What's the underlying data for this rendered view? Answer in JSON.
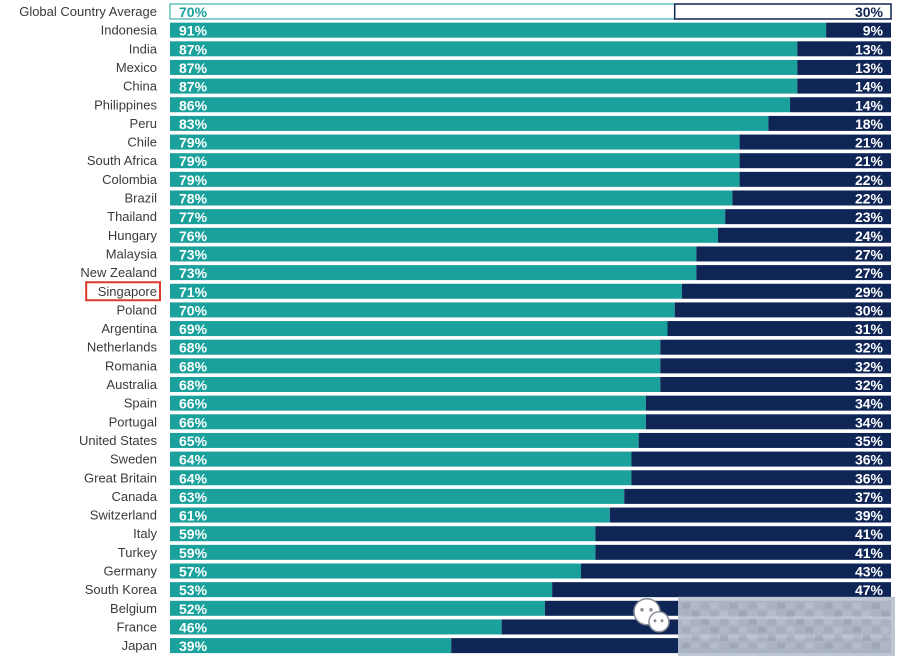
{
  "chart_data": {
    "type": "bar",
    "stacked": true,
    "orientation": "horizontal",
    "highlighted_category": "Singapore",
    "categories": [
      "Global Country Average",
      "Indonesia",
      "India",
      "Mexico",
      "China",
      "Philippines",
      "Peru",
      "Chile",
      "South Africa",
      "Colombia",
      "Brazil",
      "Thailand",
      "Hungary",
      "Malaysia",
      "New Zealand",
      "Singapore",
      "Poland",
      "Argentina",
      "Netherlands",
      "Romania",
      "Australia",
      "Spain",
      "Portugal",
      "United States",
      "Sweden",
      "Great Britain",
      "Canada",
      "Switzerland",
      "Italy",
      "Turkey",
      "Germany",
      "South Korea",
      "Belgium",
      "France",
      "Japan"
    ],
    "series": [
      {
        "values": [
          70,
          91,
          87,
          87,
          87,
          86,
          83,
          79,
          79,
          79,
          78,
          77,
          76,
          73,
          73,
          71,
          70,
          69,
          68,
          68,
          68,
          66,
          66,
          65,
          64,
          64,
          63,
          61,
          59,
          59,
          57,
          53,
          52,
          46,
          39
        ],
        "labels": [
          "70%",
          "91%",
          "87%",
          "87%",
          "87%",
          "86%",
          "83%",
          "79%",
          "79%",
          "79%",
          "78%",
          "77%",
          "76%",
          "73%",
          "73%",
          "71%",
          "70%",
          "69%",
          "68%",
          "68%",
          "68%",
          "66%",
          "66%",
          "65%",
          "64%",
          "64%",
          "63%",
          "61%",
          "59%",
          "59%",
          "57%",
          "53%",
          "52%",
          "46%",
          "39%"
        ],
        "color": "#1aa19b"
      },
      {
        "values": [
          30,
          9,
          13,
          13,
          14,
          14,
          18,
          21,
          21,
          22,
          22,
          23,
          24,
          27,
          27,
          29,
          30,
          31,
          32,
          32,
          32,
          34,
          34,
          35,
          36,
          36,
          37,
          39,
          41,
          41,
          43,
          47,
          48,
          54,
          61
        ],
        "labels": [
          "30%",
          "9%",
          "13%",
          "13%",
          "14%",
          "14%",
          "18%",
          "21%",
          "21%",
          "22%",
          "22%",
          "23%",
          "24%",
          "27%",
          "27%",
          "29%",
          "30%",
          "31%",
          "32%",
          "32%",
          "32%",
          "34%",
          "34%",
          "35%",
          "36%",
          "36%",
          "37%",
          "39%",
          "41%",
          "41%",
          "43%",
          "47%",
          "",
          "",
          ""
        ],
        "color": "#0e2556"
      }
    ],
    "xlim": [
      0,
      100
    ],
    "grid": false,
    "legend": "none",
    "colors": {
      "first_series": "#1aa19b",
      "second_series": "#0e2556",
      "average_row_first_series": "#ffffff",
      "average_row_second_series": "#ffffff",
      "average_row_first_text": "#1aa19b",
      "average_row_second_text": "#0e2556",
      "highlight_border": "#d93a2b",
      "watermark_block": "#b9c0cf"
    },
    "watermark": {
      "icon": "wechat-icon"
    }
  }
}
